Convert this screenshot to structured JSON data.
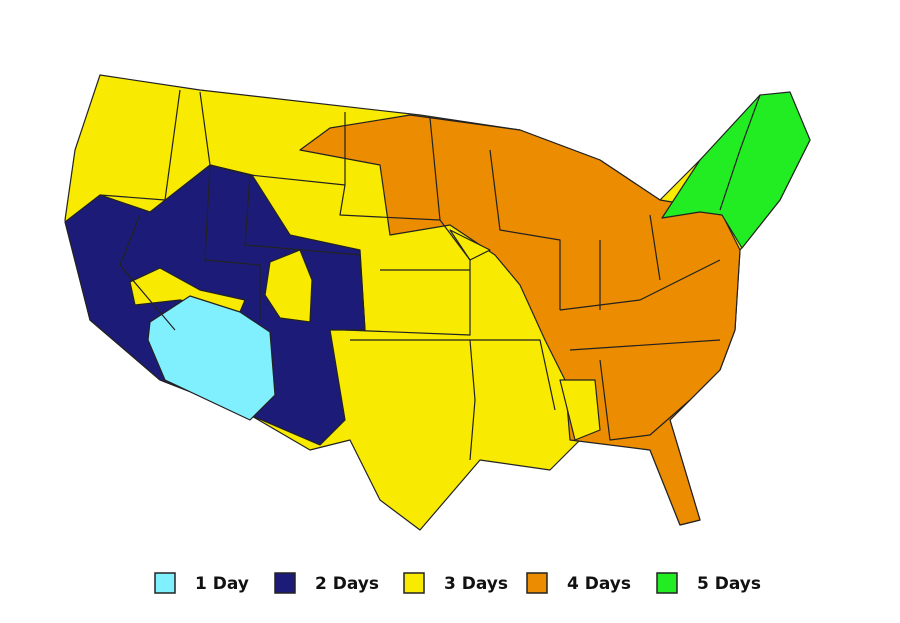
{
  "legend": [
    {
      "label": "1 Day",
      "color": "#80f0ff"
    },
    {
      "label": "2 Days",
      "color": "#1c1c78"
    },
    {
      "label": "3 Days",
      "color": "#f8ea00"
    },
    {
      "label": "4 Days",
      "color": "#ec8c00"
    },
    {
      "label": "5 Days",
      "color": "#22ec22"
    }
  ]
}
